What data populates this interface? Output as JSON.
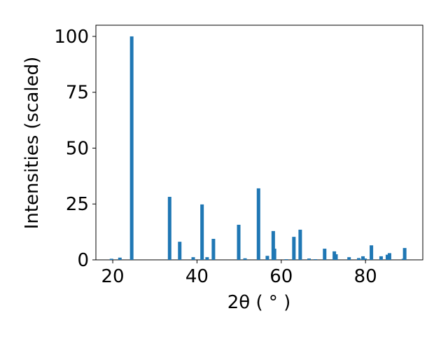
{
  "chart_data": {
    "type": "bar",
    "x_label": "2θ ( ° )",
    "y_label": "Intensities (scaled)",
    "color": "#1f77b4",
    "x": [
      19.7,
      21.7,
      24.5,
      33.5,
      35.9,
      39.1,
      41.2,
      42.4,
      43.9,
      49.9,
      51.4,
      54.6,
      56.7,
      58.1,
      58.4,
      61.2,
      63.0,
      64.5,
      66.6,
      68.1,
      70.3,
      72.6,
      73.0,
      76.1,
      78.4,
      79.4,
      79.9,
      81.4,
      83.7,
      85.2,
      85.7,
      89.0,
      89.3
    ],
    "values": [
      0.5,
      1,
      100,
      28.2,
      8.1,
      1.2,
      24.8,
      1.2,
      9.4,
      15.7,
      0.7,
      32,
      1.8,
      12.9,
      5,
      0.3,
      10.3,
      13.5,
      0.6,
      0.3,
      5,
      3.8,
      2.5,
      1.2,
      0.8,
      1.6,
      0.6,
      6.5,
      1.6,
      2.3,
      3,
      0.5,
      5.3
    ],
    "xlim": [
      16,
      93.6
    ],
    "ylim": [
      0,
      105
    ],
    "xticks": [
      20,
      40,
      60,
      80
    ],
    "yticks": [
      0,
      25,
      50,
      75,
      100
    ]
  }
}
